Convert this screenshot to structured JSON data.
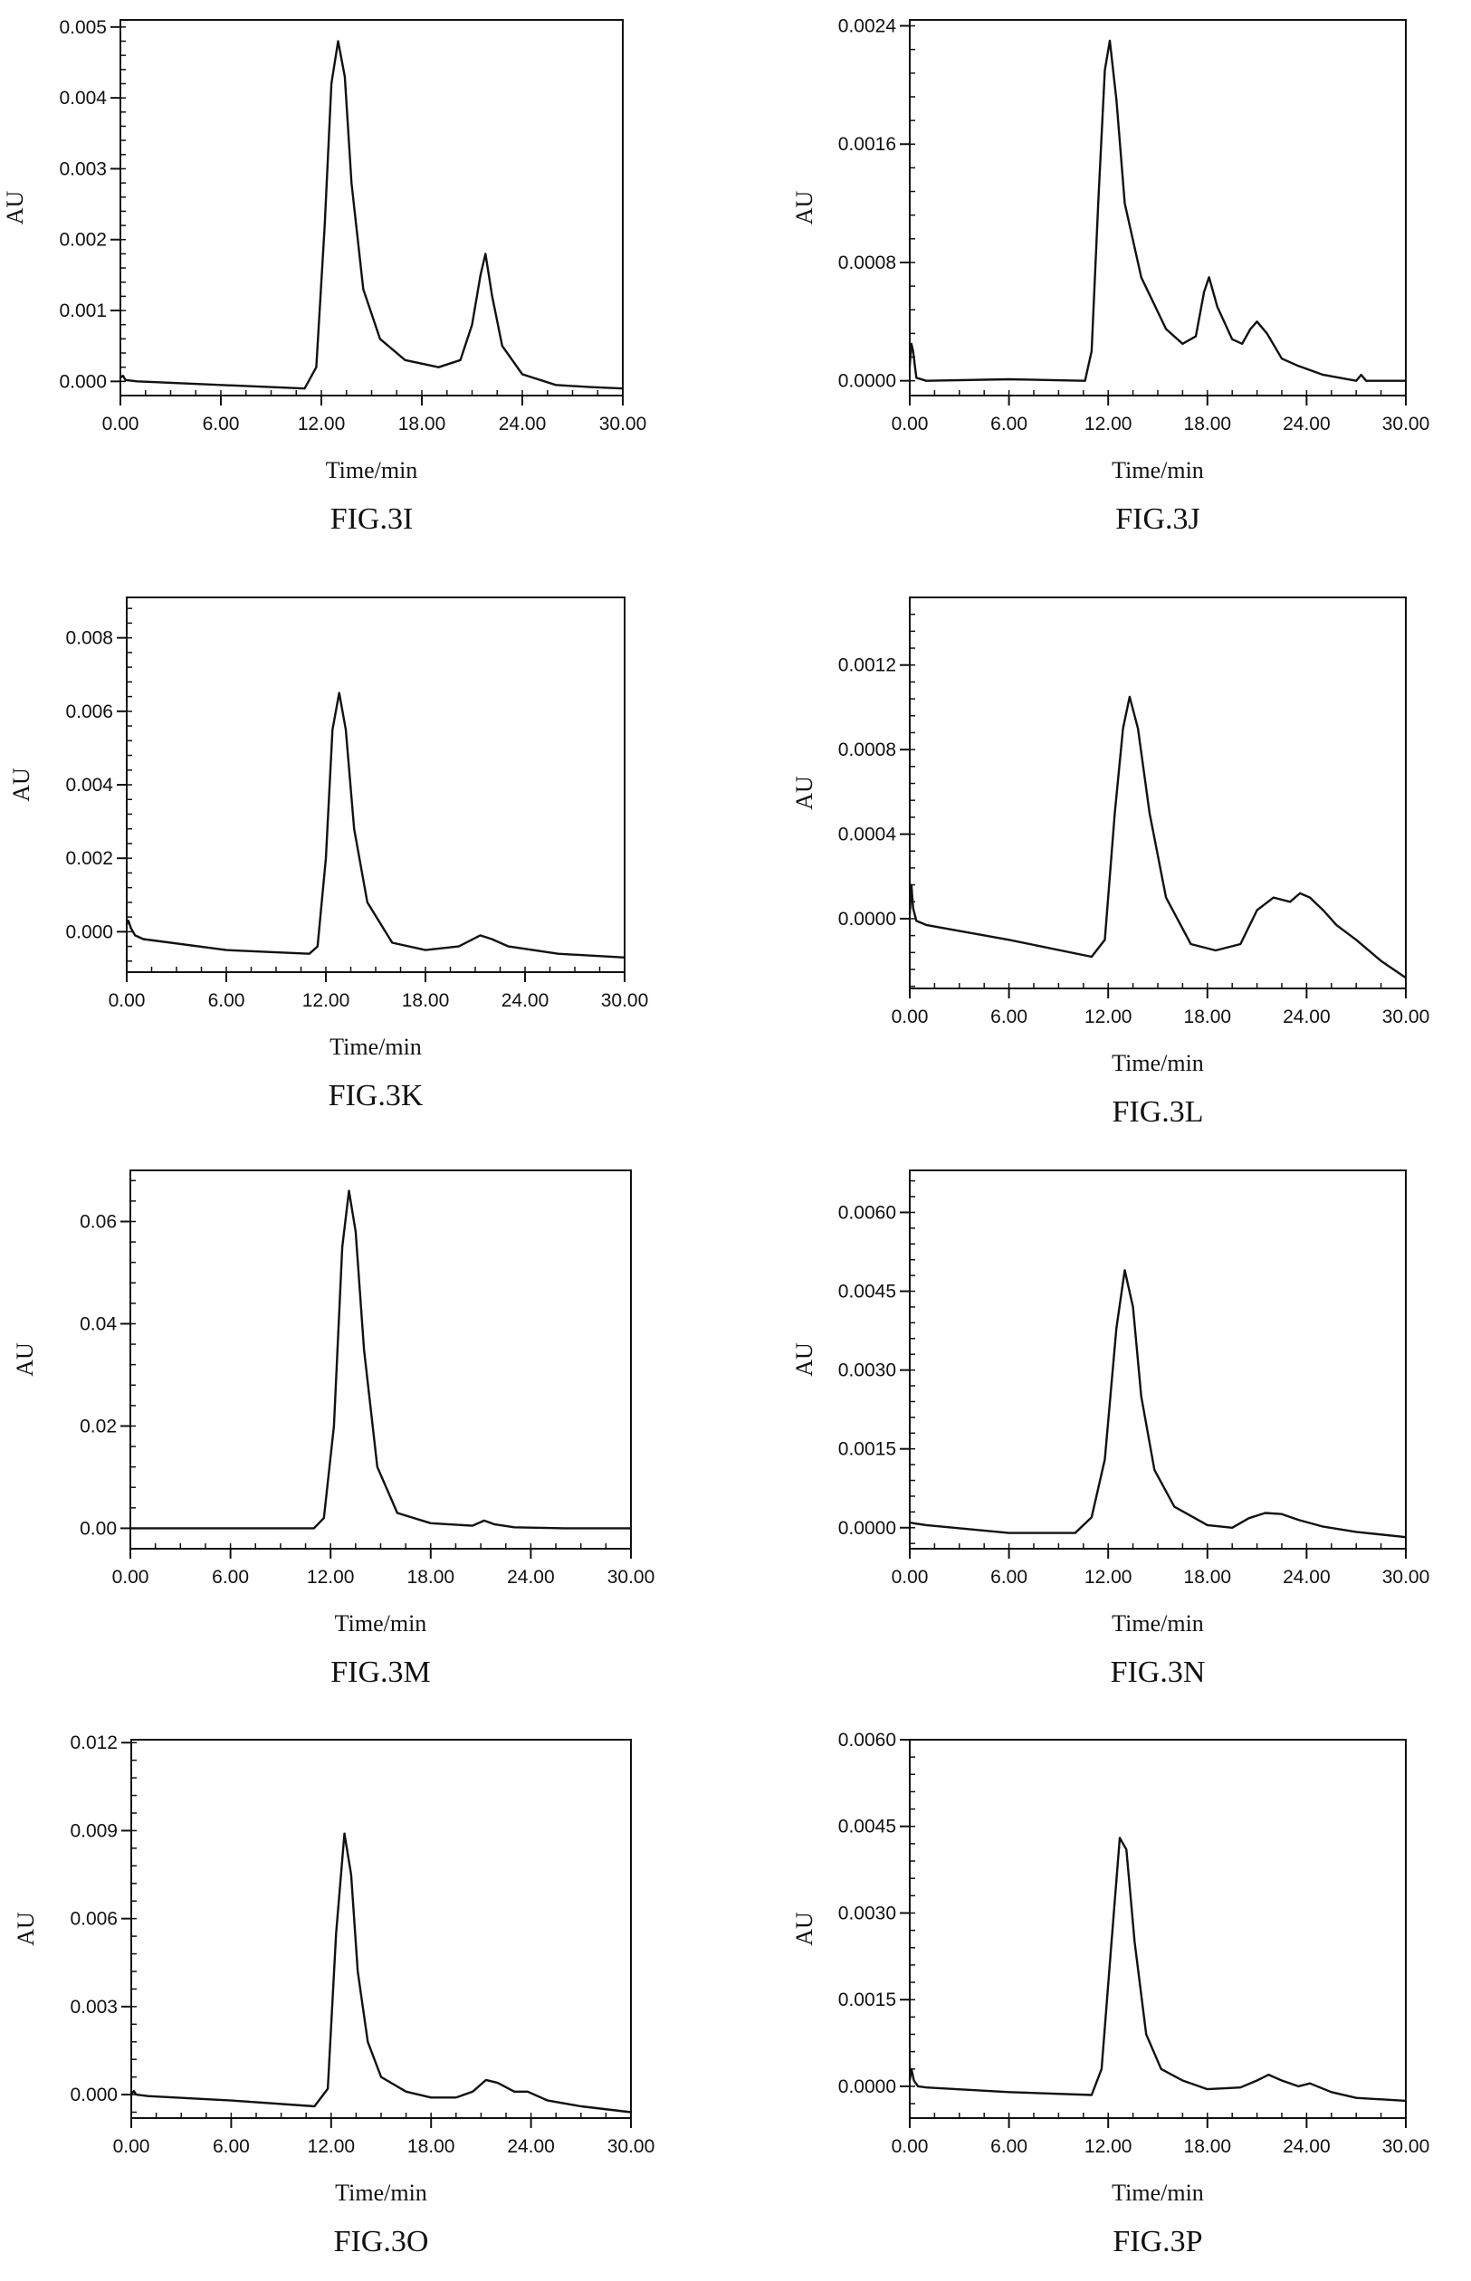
{
  "chart_data": [
    {
      "type": "line",
      "caption": "FIG.3I",
      "xlabel": "Time/min",
      "ylabel": "AU",
      "xlim": [
        0,
        30
      ],
      "ylim": [
        -0.0002,
        0.0051
      ],
      "xticks": [
        0,
        6,
        12,
        18,
        24,
        30
      ],
      "xtick_labels": [
        "0.00",
        "6.00",
        "12.00",
        "18.00",
        "24.00",
        "30.00"
      ],
      "yticks": [
        0,
        0.001,
        0.002,
        0.003,
        0.004,
        0.005
      ],
      "ytick_labels": [
        "0.000",
        "0.001",
        "0.002",
        "0.003",
        "0.004",
        "0.005"
      ],
      "grid": false,
      "series": [
        {
          "x": [
            0,
            0.15,
            0.3,
            1,
            6,
            11,
            11.7,
            12.2,
            12.6,
            13,
            13.4,
            13.8,
            14.5,
            15.5,
            17,
            19,
            20.3,
            21,
            21.5,
            21.8,
            22.2,
            22.8,
            24,
            26,
            28,
            30
          ],
          "y": [
            5e-05,
            8e-05,
            2e-05,
            0.0,
            -5e-05,
            -0.0001,
            0.0002,
            0.0022,
            0.0042,
            0.0048,
            0.0043,
            0.0028,
            0.0013,
            0.0006,
            0.0003,
            0.0002,
            0.0003,
            0.0008,
            0.0015,
            0.0018,
            0.0012,
            0.0005,
            0.0001,
            -5e-05,
            -8e-05,
            -0.0001
          ]
        }
      ]
    },
    {
      "type": "line",
      "caption": "FIG.3J",
      "xlabel": "Time/min",
      "ylabel": "AU",
      "xlim": [
        0,
        30
      ],
      "ylim": [
        -0.0001,
        0.00244
      ],
      "xticks": [
        0,
        6,
        12,
        18,
        24,
        30
      ],
      "xtick_labels": [
        "0.00",
        "6.00",
        "12.00",
        "18.00",
        "24.00",
        "30.00"
      ],
      "yticks": [
        0,
        0.0008,
        0.0016,
        0.0024
      ],
      "ytick_labels": [
        "0.0000",
        "0.0008",
        "0.0016",
        "0.0024"
      ],
      "grid": false,
      "series": [
        {
          "x": [
            0,
            0.1,
            0.2,
            0.4,
            1,
            6,
            10.6,
            11,
            11.4,
            11.8,
            12.1,
            12.5,
            13,
            14,
            15.5,
            16.5,
            17.3,
            17.8,
            18.1,
            18.6,
            19.5,
            20.1,
            20.6,
            21,
            21.6,
            22.5,
            23.5,
            25,
            27,
            27.3,
            27.6,
            30
          ],
          "y": [
            0.0001,
            0.00025,
            0.0002,
            2e-05,
            0.0,
            1e-05,
            0.0,
            0.0002,
            0.0012,
            0.0021,
            0.0023,
            0.0019,
            0.0012,
            0.0007,
            0.00035,
            0.00025,
            0.0003,
            0.0006,
            0.0007,
            0.0005,
            0.00028,
            0.00025,
            0.00035,
            0.0004,
            0.00032,
            0.00015,
            0.0001,
            4e-05,
            0.0,
            4e-05,
            0.0,
            0.0
          ]
        }
      ]
    },
    {
      "type": "line",
      "caption": "FIG.3K",
      "xlabel": "Time/min",
      "ylabel": "AU",
      "xlim": [
        0,
        30
      ],
      "ylim": [
        -0.0011,
        0.0091
      ],
      "xticks": [
        0,
        6,
        12,
        18,
        24,
        30
      ],
      "xtick_labels": [
        "0.00",
        "6.00",
        "12.00",
        "18.00",
        "24.00",
        "30.00"
      ],
      "yticks": [
        0,
        0.002,
        0.004,
        0.006,
        0.008
      ],
      "ytick_labels": [
        "0.000",
        "0.002",
        "0.004",
        "0.006",
        "0.008"
      ],
      "grid": false,
      "series": [
        {
          "x": [
            0,
            0.1,
            0.25,
            0.5,
            1,
            6,
            11,
            11.5,
            12,
            12.4,
            12.8,
            13.2,
            13.7,
            14.5,
            16,
            18,
            20,
            21.3,
            22,
            23,
            26,
            30
          ],
          "y": [
            0.0002,
            0.0003,
            0.0001,
            -0.0001,
            -0.0002,
            -0.0005,
            -0.0006,
            -0.0004,
            0.002,
            0.0055,
            0.0065,
            0.0055,
            0.0028,
            0.0008,
            -0.0003,
            -0.0005,
            -0.0004,
            -0.0001,
            -0.0002,
            -0.0004,
            -0.0006,
            -0.0007
          ]
        }
      ]
    },
    {
      "type": "line",
      "caption": "FIG.3L",
      "xlabel": "Time/min",
      "ylabel": "AU",
      "xlim": [
        0,
        30
      ],
      "ylim": [
        -0.00033,
        0.00152
      ],
      "xticks": [
        0,
        6,
        12,
        18,
        24,
        30
      ],
      "xtick_labels": [
        "0.00",
        "6.00",
        "12.00",
        "18.00",
        "24.00",
        "30.00"
      ],
      "yticks": [
        0,
        0.0004,
        0.0008,
        0.0012
      ],
      "ytick_labels": [
        "0.0000",
        "0.0004",
        "0.0008",
        "0.0012"
      ],
      "grid": false,
      "series": [
        {
          "x": [
            0,
            0.1,
            0.2,
            0.4,
            1,
            6,
            11,
            11.8,
            12.4,
            12.9,
            13.3,
            13.8,
            14.5,
            15.5,
            17,
            18.5,
            20,
            21,
            22,
            23,
            23.6,
            24.2,
            25,
            25.8,
            27,
            28.5,
            30
          ],
          "y": [
            2e-05,
            0.00016,
            5e-05,
            -1e-05,
            -3e-05,
            -0.0001,
            -0.00018,
            -0.0001,
            0.0005,
            0.0009,
            0.00105,
            0.0009,
            0.0005,
            0.0001,
            -0.00012,
            -0.00015,
            -0.00012,
            4e-05,
            0.0001,
            8e-05,
            0.00012,
            0.0001,
            4e-05,
            -3e-05,
            -0.0001,
            -0.0002,
            -0.00028
          ]
        }
      ]
    },
    {
      "type": "line",
      "caption": "FIG.3M",
      "xlabel": "Time/min",
      "ylabel": "AU",
      "xlim": [
        0,
        30
      ],
      "ylim": [
        -0.004,
        0.07
      ],
      "xticks": [
        0,
        6,
        12,
        18,
        24,
        30
      ],
      "xtick_labels": [
        "0.00",
        "6.00",
        "12.00",
        "18.00",
        "24.00",
        "30.00"
      ],
      "yticks": [
        0,
        0.02,
        0.04,
        0.06
      ],
      "ytick_labels": [
        "0.00",
        "0.02",
        "0.04",
        "0.06"
      ],
      "grid": false,
      "series": [
        {
          "x": [
            0,
            6,
            11,
            11.6,
            12.2,
            12.7,
            13.1,
            13.5,
            14,
            14.8,
            16,
            18,
            20.5,
            21.2,
            21.8,
            23,
            26,
            30
          ],
          "y": [
            0.0,
            0.0,
            0.0,
            0.002,
            0.02,
            0.055,
            0.066,
            0.058,
            0.035,
            0.012,
            0.003,
            0.001,
            0.0005,
            0.0015,
            0.0008,
            0.0002,
            0.0,
            0.0
          ]
        }
      ]
    },
    {
      "type": "line",
      "caption": "FIG.3N",
      "xlabel": "Time/min",
      "ylabel": "AU",
      "xlim": [
        0,
        30
      ],
      "ylim": [
        -0.0004,
        0.0068
      ],
      "xticks": [
        0,
        6,
        12,
        18,
        24,
        30
      ],
      "xtick_labels": [
        "0.00",
        "6.00",
        "12.00",
        "18.00",
        "24.00",
        "30.00"
      ],
      "yticks": [
        0,
        0.0015,
        0.003,
        0.0045,
        0.006
      ],
      "ytick_labels": [
        "0.0000",
        "0.0015",
        "0.0030",
        "0.0045",
        "0.0060"
      ],
      "grid": false,
      "series": [
        {
          "x": [
            0,
            0.3,
            1,
            6,
            10,
            11,
            11.8,
            12.5,
            13,
            13.5,
            14,
            14.8,
            16,
            18,
            19.5,
            20.5,
            21.5,
            22.5,
            23.5,
            25,
            27,
            30
          ],
          "y": [
            0.0001,
            8e-05,
            5e-05,
            -0.0001,
            -0.0001,
            0.0002,
            0.0013,
            0.0038,
            0.0049,
            0.0042,
            0.0025,
            0.0011,
            0.0004,
            5e-05,
            0.0,
            0.00018,
            0.00028,
            0.00026,
            0.00015,
            2e-05,
            -8e-05,
            -0.00018
          ]
        }
      ]
    },
    {
      "type": "line",
      "caption": "FIG.3O",
      "xlabel": "Time/min",
      "ylabel": "AU",
      "xlim": [
        0,
        30
      ],
      "ylim": [
        -0.0008,
        0.0121
      ],
      "xticks": [
        0,
        6,
        12,
        18,
        24,
        30
      ],
      "xtick_labels": [
        "0.00",
        "6.00",
        "12.00",
        "18.00",
        "24.00",
        "30.00"
      ],
      "yticks": [
        0,
        0.003,
        0.006,
        0.009,
        0.012
      ],
      "ytick_labels": [
        "0.000",
        "0.003",
        "0.006",
        "0.009",
        "0.012"
      ],
      "grid": false,
      "series": [
        {
          "x": [
            0,
            0.15,
            0.3,
            1,
            6,
            11,
            11.8,
            12.3,
            12.8,
            13.2,
            13.6,
            14.2,
            15,
            16.5,
            18,
            19.5,
            20.5,
            21.3,
            22,
            23,
            23.8,
            25,
            27,
            30
          ],
          "y": [
            0.0,
            0.00012,
            0.0,
            -5e-05,
            -0.0002,
            -0.0004,
            0.0002,
            0.0055,
            0.0089,
            0.0075,
            0.0042,
            0.0018,
            0.0006,
            0.0001,
            -0.0001,
            -0.0001,
            0.0001,
            0.0005,
            0.0004,
            0.0001,
            0.0001,
            -0.0002,
            -0.0004,
            -0.0006
          ]
        }
      ]
    },
    {
      "type": "line",
      "caption": "FIG.3P",
      "xlabel": "Time/min",
      "ylabel": "AU",
      "xlim": [
        0,
        30
      ],
      "ylim": [
        -0.00055,
        0.006
      ],
      "xticks": [
        0,
        6,
        12,
        18,
        24,
        30
      ],
      "xtick_labels": [
        "0.00",
        "6.00",
        "12.00",
        "18.00",
        "24.00",
        "30.00"
      ],
      "yticks": [
        0,
        0.0015,
        0.003,
        0.0045,
        0.006
      ],
      "ytick_labels": [
        "0.0000",
        "0.0015",
        "0.0030",
        "0.0045",
        "0.0060"
      ],
      "grid": false,
      "series": [
        {
          "x": [
            0,
            0.1,
            0.25,
            0.5,
            1,
            6,
            11,
            11.6,
            12.2,
            12.7,
            13.1,
            13.6,
            14.3,
            15.2,
            16.5,
            18,
            20,
            21,
            21.7,
            22.5,
            23.5,
            24.2,
            25.5,
            27,
            30
          ],
          "y": [
            0.0001,
            0.0003,
            0.0001,
            0.0,
            -2e-05,
            -0.0001,
            -0.00015,
            0.0003,
            0.0025,
            0.0043,
            0.0041,
            0.0025,
            0.0009,
            0.0003,
            0.0001,
            -5e-05,
            -2e-05,
            0.0001,
            0.0002,
            0.0001,
            0.0,
            5e-05,
            -0.0001,
            -0.0002,
            -0.00025
          ]
        }
      ]
    }
  ]
}
